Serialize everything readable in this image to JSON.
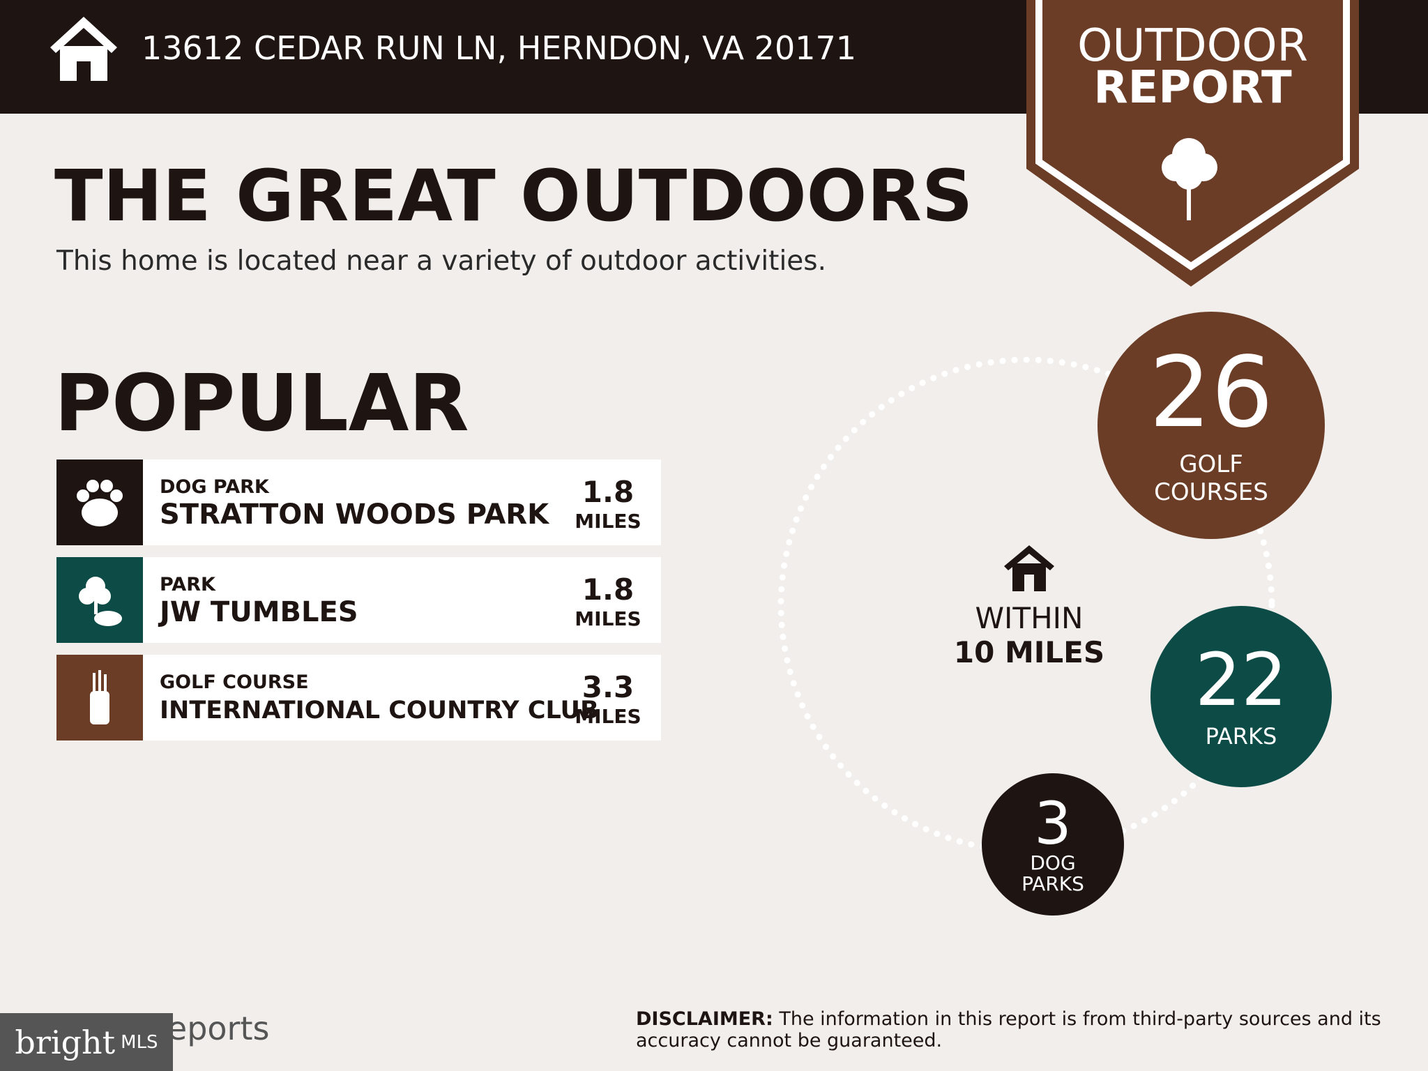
{
  "header": {
    "address": "13612 CEDAR RUN LN, HERNDON, VA 20171"
  },
  "badge": {
    "line1": "OUTDOOR",
    "line2": "REPORT"
  },
  "title": "THE GREAT OUTDOORS",
  "subtitle": "This home is located near a variety of outdoor activities.",
  "popular": {
    "heading": "POPULAR",
    "items": [
      {
        "category": "DOG PARK",
        "name": "STRATTON WOODS PARK",
        "distance": 1.8,
        "unit": "MILES"
      },
      {
        "category": "PARK",
        "name": "JW TUMBLES",
        "distance": 1.8,
        "unit": "MILES"
      },
      {
        "category": "GOLF COURSE",
        "name": "INTERNATIONAL COUNTRY CLUB",
        "distance": 3.3,
        "unit": "MILES"
      }
    ]
  },
  "summary": {
    "within": "WITHIN",
    "radius": "10 MILES",
    "counts": [
      {
        "count": 26,
        "label": "GOLF COURSES"
      },
      {
        "count": 22,
        "label": "PARKS"
      },
      {
        "count": 3,
        "label": "DOG PARKS"
      }
    ]
  },
  "footer": {
    "brand": "bright",
    "brand_suffix": "MLS",
    "product": "Reports",
    "disclaimer_label": "DISCLAIMER:",
    "disclaimer": "The information in this report is from third-party sources and its accuracy cannot be guaranteed."
  }
}
